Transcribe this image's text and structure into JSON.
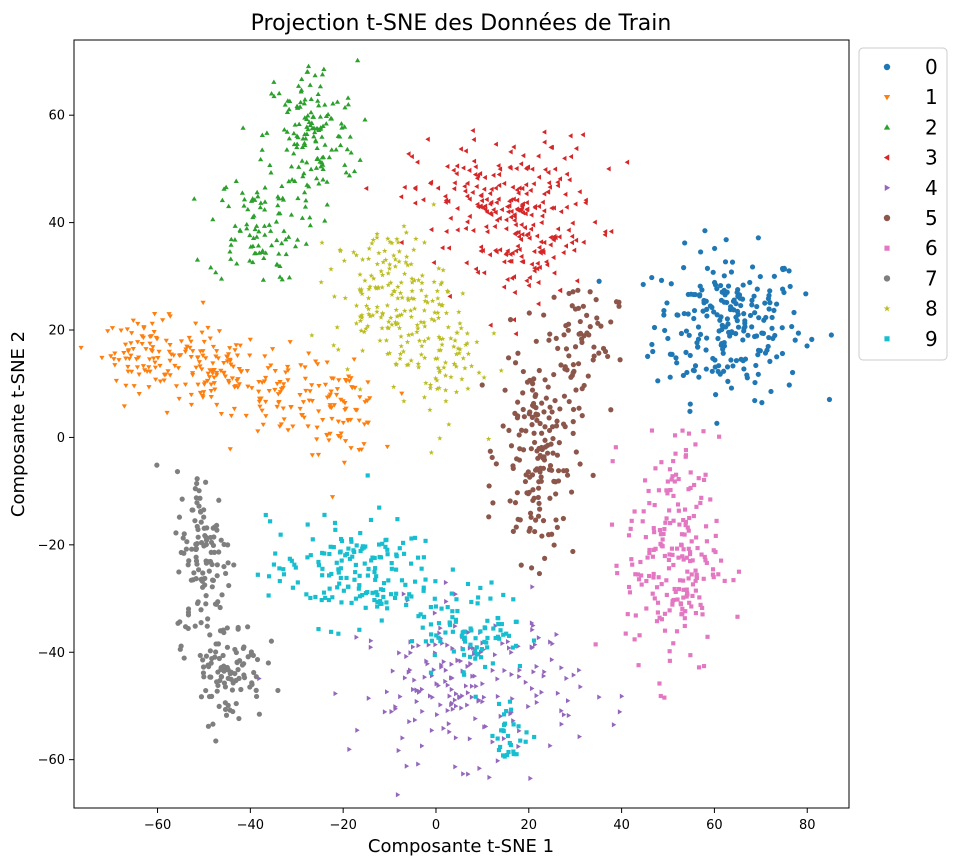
{
  "chart_data": {
    "type": "scatter",
    "title": "Projection t-SNE des Données de Train",
    "xlabel": "Composante t-SNE 1",
    "ylabel": "Composante t-SNE 2",
    "xlim": [
      -78,
      89
    ],
    "ylim": [
      -69,
      74
    ],
    "xticks": [
      -60,
      -40,
      -20,
      0,
      20,
      40,
      60,
      80
    ],
    "yticks": [
      -60,
      -40,
      -20,
      0,
      20,
      40,
      60
    ],
    "xtick_labels": [
      "−60",
      "−40",
      "−20",
      "0",
      "20",
      "40",
      "60",
      "80"
    ],
    "ytick_labels": [
      "−60",
      "−40",
      "−20",
      "0",
      "20",
      "40",
      "60"
    ],
    "grid": false,
    "legend_position": "outside-top-right",
    "series": [
      {
        "name": "0",
        "color": "#1f77b4",
        "marker": "circle",
        "clusters": [
          {
            "cx": 63,
            "cy": 21,
            "sx": 8,
            "sy": 7,
            "n": 230
          }
        ]
      },
      {
        "name": "1",
        "color": "#ff7f0e",
        "marker": "triangle-down",
        "clusters": [
          {
            "cx": -62,
            "cy": 16,
            "sx": 5,
            "sy": 3,
            "n": 90
          },
          {
            "cx": -48,
            "cy": 12,
            "sx": 5,
            "sy": 4,
            "n": 90
          },
          {
            "cx": -33,
            "cy": 8,
            "sx": 5,
            "sy": 4,
            "n": 70
          },
          {
            "cx": -20,
            "cy": 5,
            "sx": 4,
            "sy": 4,
            "n": 70
          }
        ]
      },
      {
        "name": "2",
        "color": "#2ca02c",
        "marker": "triangle-up",
        "clusters": [
          {
            "cx": -27,
            "cy": 56,
            "sx": 5,
            "sy": 7,
            "n": 150
          },
          {
            "cx": -39,
            "cy": 39,
            "sx": 5,
            "sy": 5,
            "n": 90
          }
        ]
      },
      {
        "name": "3",
        "color": "#d62728",
        "marker": "triangle-left",
        "clusters": [
          {
            "cx": 15,
            "cy": 44,
            "sx": 10,
            "sy": 6,
            "n": 200
          },
          {
            "cx": 20,
            "cy": 35,
            "sx": 6,
            "sy": 5,
            "n": 80
          }
        ]
      },
      {
        "name": "4",
        "color": "#9467bd",
        "marker": "triangle-right",
        "clusters": [
          {
            "cx": 7,
            "cy": -46,
            "sx": 12,
            "sy": 7,
            "n": 200
          }
        ]
      },
      {
        "name": "5",
        "color": "#8c564b",
        "marker": "circle",
        "clusters": [
          {
            "cx": 22,
            "cy": -3,
            "sx": 4,
            "sy": 10,
            "n": 170
          },
          {
            "cx": 31,
            "cy": 18,
            "sx": 4,
            "sy": 6,
            "n": 60
          }
        ]
      },
      {
        "name": "6",
        "color": "#e377c2",
        "marker": "square",
        "clusters": [
          {
            "cx": 51,
            "cy": -22,
            "sx": 5,
            "sy": 11,
            "n": 220
          }
        ]
      },
      {
        "name": "7",
        "color": "#7f7f7f",
        "marker": "circle",
        "clusters": [
          {
            "cx": -50,
            "cy": -22,
            "sx": 3,
            "sy": 8,
            "n": 120
          },
          {
            "cx": -45,
            "cy": -43,
            "sx": 4,
            "sy": 5,
            "n": 100
          }
        ]
      },
      {
        "name": "8",
        "color": "#bcbd22",
        "marker": "star",
        "clusters": [
          {
            "cx": -10,
            "cy": 27,
            "sx": 6,
            "sy": 6,
            "n": 160
          },
          {
            "cx": 0,
            "cy": 15,
            "sx": 5,
            "sy": 6,
            "n": 90
          }
        ]
      },
      {
        "name": "9",
        "color": "#17becf",
        "marker": "square",
        "clusters": [
          {
            "cx": -18,
            "cy": -25,
            "sx": 9,
            "sy": 5,
            "n": 170
          },
          {
            "cx": 8,
            "cy": -36,
            "sx": 6,
            "sy": 4,
            "n": 90
          },
          {
            "cx": 16,
            "cy": -55,
            "sx": 2,
            "sy": 3,
            "n": 30
          }
        ]
      }
    ]
  }
}
